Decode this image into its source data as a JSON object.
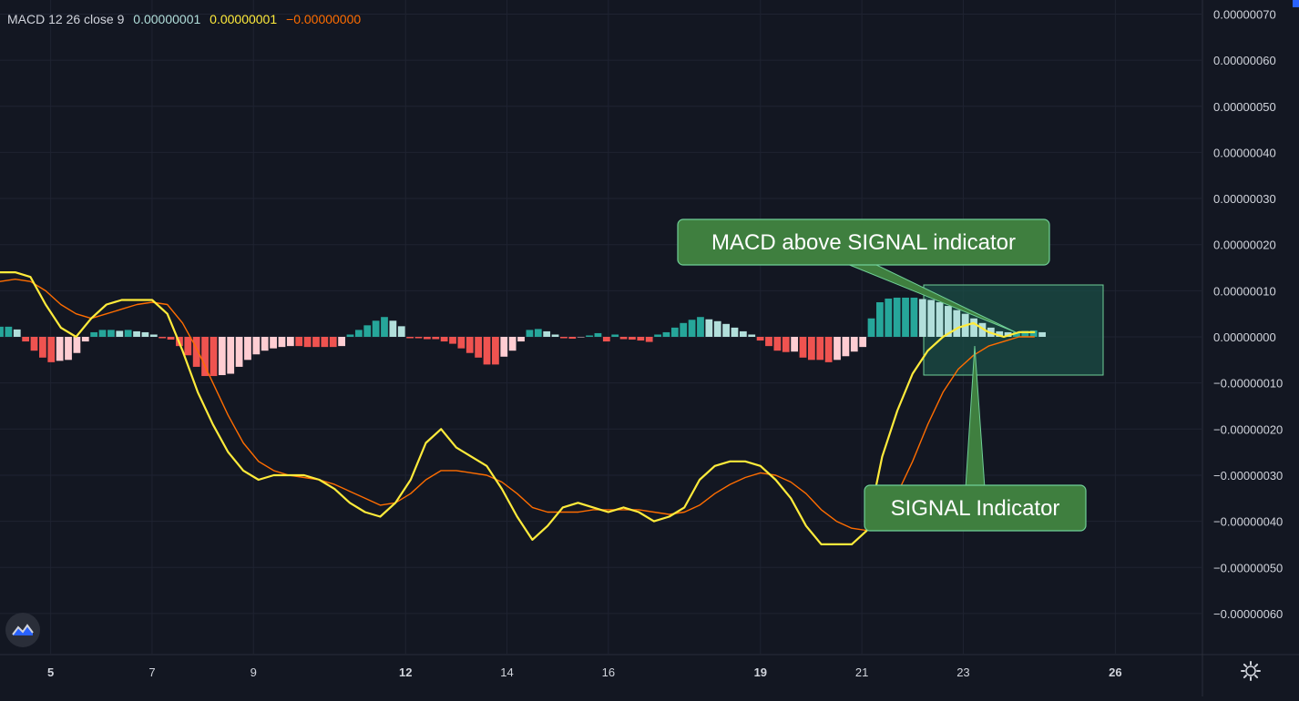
{
  "legend": {
    "name": "MACD 12 26 close 9",
    "histogram_value": "0.00000001",
    "macd_value": "0.00000001",
    "signal_value": "−0.00000000"
  },
  "colors": {
    "background": "#131722",
    "grid": "#1f2331",
    "macd_line": "#ffeb3b",
    "signal_line": "#ff6d00",
    "hist_up_strong": "#26a69a",
    "hist_up_weak": "#b2dfdb",
    "hist_down_strong": "#ef5350",
    "hist_down_weak": "#ffcdd2",
    "callout_bg": "#3f7f3f",
    "callout_border": "#6fcf97",
    "zone_fill": "#1b4d45",
    "zone_border": "#6fcf97"
  },
  "annotations": {
    "macd_above_signal": "MACD above SIGNAL indicator",
    "signal_indicator": "SIGNAL Indicator"
  },
  "icons": {
    "settings": "gear-icon",
    "logo": "tradingview-logo-icon"
  },
  "chart_data": {
    "type": "line",
    "title": "",
    "ylim": [
      -7e-07,
      7e-07
    ],
    "y_ticks": [
      "0.00000070",
      "0.00000060",
      "0.00000050",
      "0.00000040",
      "0.00000030",
      "0.00000020",
      "0.00000010",
      "0.00000000",
      "−0.00000010",
      "−0.00000020",
      "−0.00000030",
      "−0.00000040",
      "−0.00000050",
      "−0.00000060"
    ],
    "y_tick_values": [
      70,
      60,
      50,
      40,
      30,
      20,
      10,
      0,
      -10,
      -20,
      -30,
      -40,
      -50,
      -60
    ],
    "value_scale": "1e-8",
    "xlim": [
      4.0,
      27.7
    ],
    "x_ticks": [
      {
        "label": "5",
        "value": 5,
        "bold": true
      },
      {
        "label": "7",
        "value": 7,
        "bold": false
      },
      {
        "label": "9",
        "value": 9,
        "bold": false
      },
      {
        "label": "12",
        "value": 12,
        "bold": true
      },
      {
        "label": "14",
        "value": 14,
        "bold": false
      },
      {
        "label": "16",
        "value": 16,
        "bold": false
      },
      {
        "label": "19",
        "value": 19,
        "bold": true
      },
      {
        "label": "21",
        "value": 21,
        "bold": false
      },
      {
        "label": "23",
        "value": 23,
        "bold": false
      },
      {
        "label": "26",
        "value": 26,
        "bold": true
      }
    ],
    "series": [
      {
        "name": "MACD",
        "x": [
          4.0,
          4.3,
          4.6,
          4.9,
          5.2,
          5.5,
          5.8,
          6.1,
          6.4,
          6.7,
          7.0,
          7.3,
          7.6,
          7.9,
          8.2,
          8.5,
          8.8,
          9.1,
          9.4,
          9.7,
          10.0,
          10.3,
          10.6,
          10.9,
          11.2,
          11.5,
          11.8,
          12.1,
          12.4,
          12.7,
          13.0,
          13.3,
          13.6,
          13.9,
          14.2,
          14.5,
          14.8,
          15.1,
          15.4,
          15.7,
          16.0,
          16.3,
          16.6,
          16.9,
          17.2,
          17.5,
          17.8,
          18.1,
          18.4,
          18.7,
          19.0,
          19.3,
          19.6,
          19.9,
          20.2,
          20.5,
          20.8,
          21.1,
          21.4,
          21.7,
          22.0,
          22.3,
          22.6,
          22.9,
          23.2,
          23.5,
          23.8,
          24.1,
          24.4
        ],
        "values": [
          14,
          14,
          13,
          7,
          2,
          0,
          4,
          7,
          8,
          8,
          8,
          5,
          -3,
          -12,
          -19,
          -25,
          -29,
          -31,
          -30,
          -30,
          -30,
          -31,
          -33,
          -36,
          -38,
          -39,
          -36,
          -31,
          -23,
          -20,
          -24,
          -26,
          -28,
          -33,
          -39,
          -44,
          -41,
          -37,
          -36,
          -37,
          -38,
          -37,
          -38,
          -40,
          -39,
          -37,
          -31,
          -28,
          -27,
          -27,
          -28,
          -31,
          -35,
          -41,
          -45,
          -45,
          -45,
          -42,
          -26,
          -16,
          -8,
          -3,
          0,
          2,
          3,
          1,
          0,
          1,
          1
        ]
      },
      {
        "name": "SIGNAL",
        "x": [
          4.0,
          4.3,
          4.6,
          4.9,
          5.2,
          5.5,
          5.8,
          6.1,
          6.4,
          6.7,
          7.0,
          7.3,
          7.6,
          7.9,
          8.2,
          8.5,
          8.8,
          9.1,
          9.4,
          9.7,
          10.0,
          10.3,
          10.6,
          10.9,
          11.2,
          11.5,
          11.8,
          12.1,
          12.4,
          12.7,
          13.0,
          13.3,
          13.6,
          13.9,
          14.2,
          14.5,
          14.8,
          15.1,
          15.4,
          15.7,
          16.0,
          16.3,
          16.6,
          16.9,
          17.2,
          17.5,
          17.8,
          18.1,
          18.4,
          18.7,
          19.0,
          19.3,
          19.6,
          19.9,
          20.2,
          20.5,
          20.8,
          21.1,
          21.4,
          21.7,
          22.0,
          22.3,
          22.6,
          22.9,
          23.2,
          23.5,
          23.8,
          24.1,
          24.4
        ],
        "values": [
          12,
          12.5,
          12,
          10,
          7,
          5,
          4,
          5,
          6,
          7,
          7.5,
          7,
          3,
          -3,
          -10,
          -17,
          -23,
          -27,
          -29,
          -30,
          -30.5,
          -31,
          -32,
          -33.5,
          -35,
          -36.5,
          -36,
          -34,
          -31,
          -29,
          -29,
          -29.5,
          -30,
          -31.5,
          -34,
          -37,
          -38,
          -38,
          -38,
          -37.5,
          -37.5,
          -37.5,
          -37.5,
          -38,
          -38.5,
          -38,
          -36.5,
          -34,
          -32,
          -30.5,
          -29.5,
          -30,
          -31.5,
          -34,
          -37.5,
          -40,
          -41.5,
          -42,
          -39,
          -34,
          -27,
          -19,
          -12,
          -7,
          -4,
          -2,
          -1,
          0,
          0
        ]
      },
      {
        "name": "Histogram",
        "type": "bar",
        "x_start": 4.0,
        "x_step": 0.1685,
        "values": [
          2.2,
          2.2,
          1.6,
          -1,
          -3,
          -4.5,
          -5.5,
          -5.2,
          -5,
          -3.5,
          -1,
          1,
          1.5,
          1.5,
          1.3,
          1.5,
          1.2,
          1,
          0.5,
          -0.3,
          -0.6,
          -2,
          -4,
          -6.5,
          -8.5,
          -8.5,
          -8.3,
          -8,
          -6.5,
          -5,
          -3.8,
          -3,
          -2.5,
          -2.2,
          -2,
          -2,
          -2.2,
          -2.2,
          -2.2,
          -2.2,
          -2,
          0.5,
          1.5,
          2.5,
          3.5,
          4.3,
          3.5,
          2.3,
          -0.3,
          -0.3,
          -0.5,
          -0.5,
          -1,
          -1.5,
          -2.5,
          -3.5,
          -4.5,
          -6,
          -6,
          -4.3,
          -3,
          -1,
          1.5,
          1.7,
          1.2,
          0.5,
          -0.3,
          -0.4,
          -0.1,
          0.3,
          0.8,
          -1,
          0.5,
          -0.5,
          -0.6,
          -0.8,
          -1.1,
          0.5,
          1,
          2,
          3,
          3.7,
          4.3,
          3.8,
          3.4,
          2.8,
          2,
          1.2,
          0.5,
          -0.8,
          -2,
          -3,
          -3.3,
          -3.2,
          -4.5,
          -5,
          -5,
          -5.5,
          -5,
          -4.2,
          -3.2,
          -2.2,
          4,
          7.5,
          8.3,
          8.5,
          8.5,
          8.5,
          8.2,
          8,
          7.5,
          6.7,
          5.8,
          5,
          4,
          3,
          2,
          1.2,
          1,
          1,
          1.3,
          1.4,
          1
        ]
      }
    ],
    "grid": true,
    "legend_position": "top-left"
  }
}
